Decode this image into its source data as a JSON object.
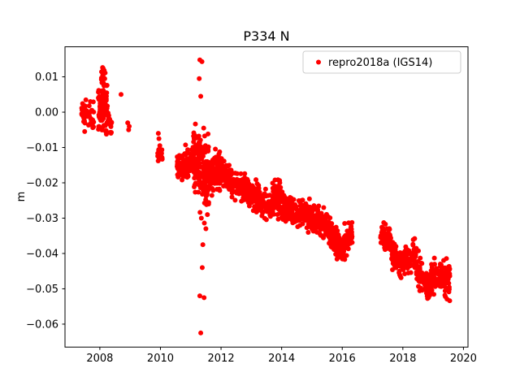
{
  "chart_data": {
    "type": "scatter",
    "title": "P334 N",
    "xlabel": "",
    "ylabel": "m",
    "xlim": [
      2006.85,
      2020.15
    ],
    "ylim": [
      -0.0665,
      0.0185
    ],
    "grid": false,
    "legend_position": "upper right",
    "legend": [
      {
        "label": "repro2018a (IGS14)",
        "color": "#ff0000"
      }
    ],
    "marker": {
      "color": "#ff0000",
      "radius": 3,
      "shape": "circle"
    },
    "xticks": {
      "values": [
        2008,
        2010,
        2012,
        2014,
        2016,
        2018,
        2020
      ],
      "labels": [
        "2008",
        "2010",
        "2012",
        "2014",
        "2016",
        "2018",
        "2020"
      ]
    },
    "yticks": {
      "values": [
        0.01,
        0.0,
        -0.01,
        -0.02,
        -0.03,
        -0.04,
        -0.05,
        -0.06
      ],
      "labels": [
        "0.01",
        "0.00",
        "−0.01",
        "−0.02",
        "−0.03",
        "−0.04",
        "−0.05",
        "−0.06"
      ]
    },
    "series_name": "repro2018a (IGS14)",
    "seed": 7,
    "trend_segments_comment": "each segment: [x_start_yr, x_end_yr, y_start_m, y_end_m, vertical_sd_m, n_points] read off the plotted band",
    "trend_segments": [
      [
        2007.4,
        2007.8,
        -0.001,
        -0.0015,
        0.0018,
        55
      ],
      [
        2007.95,
        2008.25,
        0.0005,
        0.0015,
        0.003,
        95
      ],
      [
        2008.03,
        2008.18,
        0.01,
        0.011,
        0.0013,
        18
      ],
      [
        2008.25,
        2008.4,
        -0.0015,
        -0.004,
        0.0015,
        22
      ],
      [
        2009.88,
        2010.08,
        -0.0112,
        -0.0118,
        0.0012,
        26
      ],
      [
        2010.55,
        2010.8,
        -0.0145,
        -0.0155,
        0.0016,
        55
      ],
      [
        2010.8,
        2011.1,
        -0.0155,
        -0.0125,
        0.002,
        70
      ],
      [
        2011.1,
        2011.6,
        -0.0125,
        -0.018,
        0.005,
        160
      ],
      [
        2011.6,
        2012.0,
        -0.017,
        -0.016,
        0.0025,
        90
      ],
      [
        2012.0,
        2012.5,
        -0.017,
        -0.02,
        0.002,
        100
      ],
      [
        2012.5,
        2013.1,
        -0.02,
        -0.024,
        0.002,
        120
      ],
      [
        2013.1,
        2013.7,
        -0.024,
        -0.027,
        0.002,
        110
      ],
      [
        2013.7,
        2014.0,
        -0.0255,
        -0.0245,
        0.0025,
        70
      ],
      [
        2014.0,
        2014.6,
        -0.027,
        -0.029,
        0.002,
        110
      ],
      [
        2014.6,
        2015.1,
        -0.028,
        -0.03,
        0.002,
        100
      ],
      [
        2015.1,
        2015.6,
        -0.03,
        -0.033,
        0.002,
        90
      ],
      [
        2015.6,
        2016.0,
        -0.034,
        -0.04,
        0.002,
        80
      ],
      [
        2016.0,
        2016.35,
        -0.039,
        -0.034,
        0.002,
        60
      ],
      [
        2017.25,
        2017.6,
        -0.034,
        -0.037,
        0.0018,
        60
      ],
      [
        2017.6,
        2018.0,
        -0.04,
        -0.043,
        0.002,
        70
      ],
      [
        2018.0,
        2018.45,
        -0.042,
        -0.04,
        0.002,
        80
      ],
      [
        2018.45,
        2018.85,
        -0.044,
        -0.05,
        0.002,
        70
      ],
      [
        2018.85,
        2019.15,
        -0.049,
        -0.045,
        0.002,
        60
      ],
      [
        2019.15,
        2019.55,
        -0.046,
        -0.047,
        0.0022,
        80
      ]
    ],
    "outlier_points": [
      [
        2008.7,
        0.005
      ],
      [
        2008.92,
        -0.003
      ],
      [
        2008.95,
        -0.005
      ],
      [
        2008.97,
        -0.004
      ],
      [
        2009.93,
        -0.006
      ],
      [
        2009.95,
        -0.0075
      ],
      [
        2011.3,
        0.0148
      ],
      [
        2011.37,
        0.0143
      ],
      [
        2011.28,
        0.0095
      ],
      [
        2011.33,
        0.0045
      ],
      [
        2011.33,
        -0.0625
      ],
      [
        2011.3,
        -0.052
      ],
      [
        2011.44,
        -0.0525
      ],
      [
        2011.38,
        -0.044
      ],
      [
        2011.4,
        -0.0375
      ],
      [
        2011.5,
        -0.033
      ],
      [
        2011.35,
        -0.03
      ],
      [
        2011.55,
        -0.029
      ]
    ]
  }
}
